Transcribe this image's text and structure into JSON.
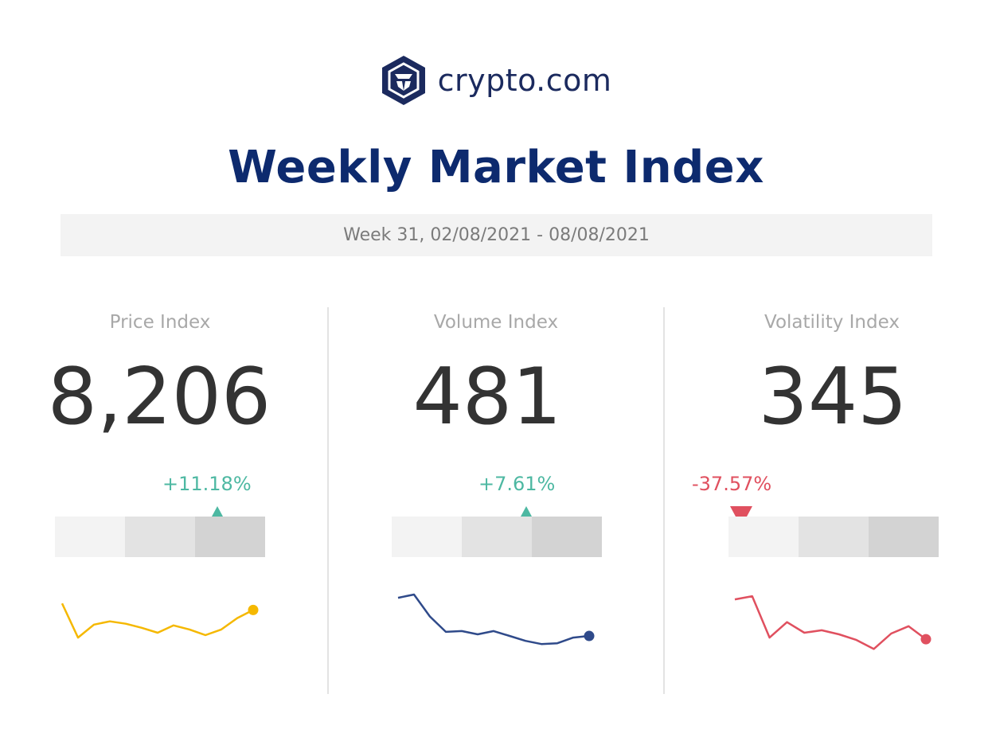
{
  "brand": {
    "name": "crypto.com",
    "logo": "crypto-com-lion-shield-icon",
    "color": "#1b2a5e"
  },
  "title": "Weekly Market Index",
  "week_range": "Week 31, 02/08/2021 - 08/08/2021",
  "colors": {
    "up": "#4db8a2",
    "down": "#e0505f",
    "price_line": "#f5b800",
    "volume_line": "#2f4a8a",
    "volatility_line": "#e0505f"
  },
  "indices": [
    {
      "label": "Price Index",
      "value": "8,206",
      "change": "+11.18%",
      "direction": "up",
      "band_level": "high",
      "trend": [
        8.8,
        4.6,
        6.2,
        6.6,
        6.3,
        5.8,
        5.2,
        6.1,
        5.6,
        4.9,
        5.6,
        7.0,
        8.0
      ]
    },
    {
      "label": "Volume Index",
      "value": "481",
      "change": "+7.61%",
      "direction": "up",
      "band_level": "medium-high",
      "trend": [
        9.5,
        9.9,
        7.2,
        5.3,
        5.4,
        5.0,
        5.4,
        4.8,
        4.2,
        3.8,
        3.9,
        4.6,
        4.8
      ]
    },
    {
      "label": "Volatility Index",
      "value": "345",
      "change": "-37.57%",
      "direction": "down",
      "band_level": "low",
      "trend": [
        9.3,
        9.7,
        4.6,
        6.5,
        5.2,
        5.5,
        5.0,
        4.3,
        3.2,
        5.1,
        6.0,
        4.4
      ]
    }
  ]
}
